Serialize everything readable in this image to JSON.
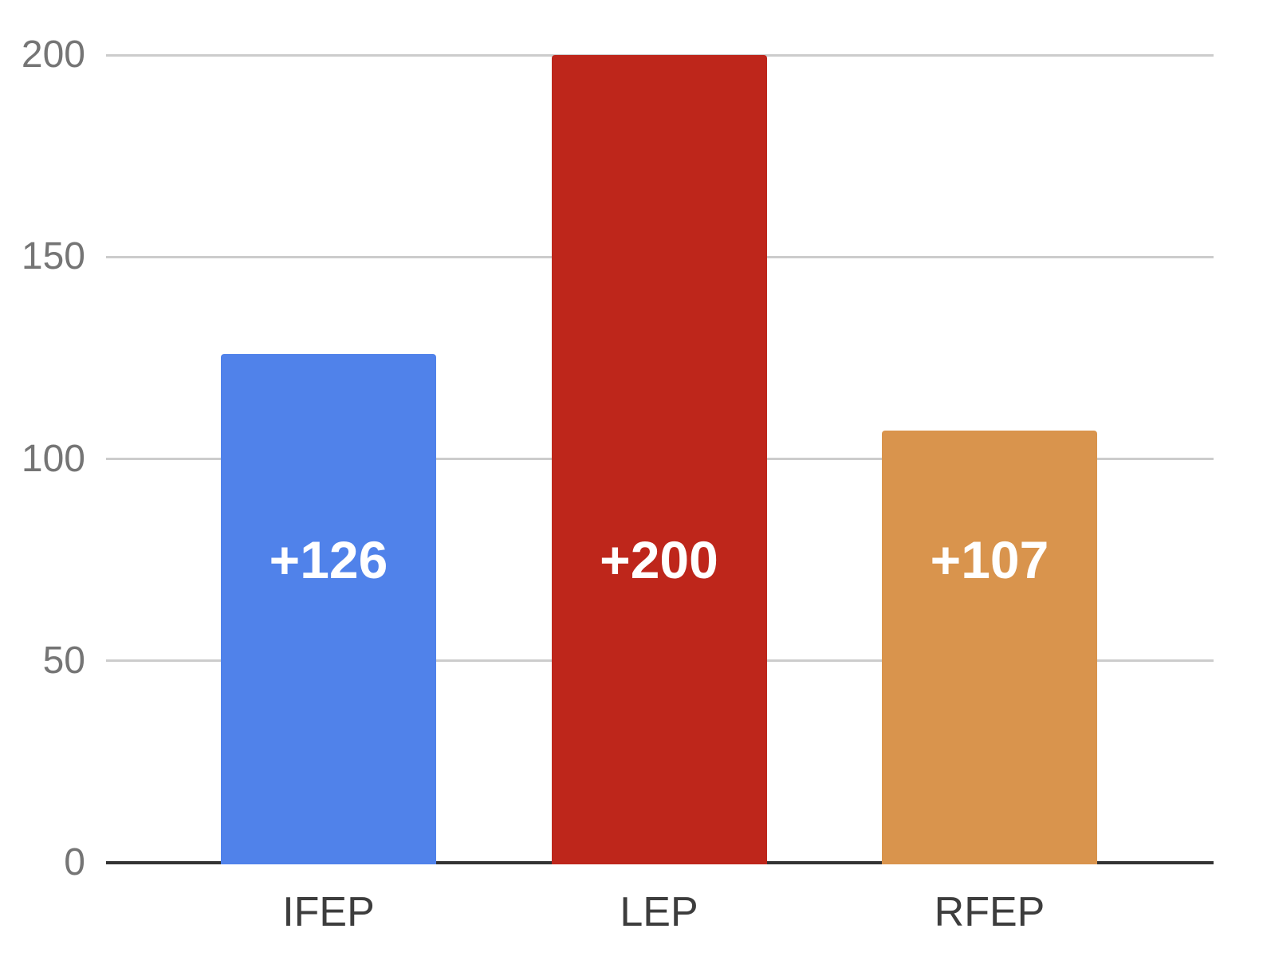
{
  "chart_data": {
    "type": "bar",
    "categories": [
      "IFEP",
      "LEP",
      "RFEP"
    ],
    "values": [
      126,
      200,
      107
    ],
    "bar_labels": [
      "+126",
      "+200",
      "+107"
    ],
    "bar_colors": [
      "#5082ea",
      "#be261b",
      "#d9944d"
    ],
    "title": "",
    "xlabel": "",
    "ylabel": "",
    "ylim": [
      0,
      200
    ],
    "yticks": [
      0,
      50,
      100,
      150,
      200
    ],
    "grid": true,
    "legend": "none",
    "colors": {
      "background": "#ffffff",
      "gridline": "#cccccc",
      "axis_line": "#333333",
      "y_tick_text": "#757575",
      "x_tick_text": "#3d3d3d",
      "annotation_text": "#ffffff"
    }
  }
}
